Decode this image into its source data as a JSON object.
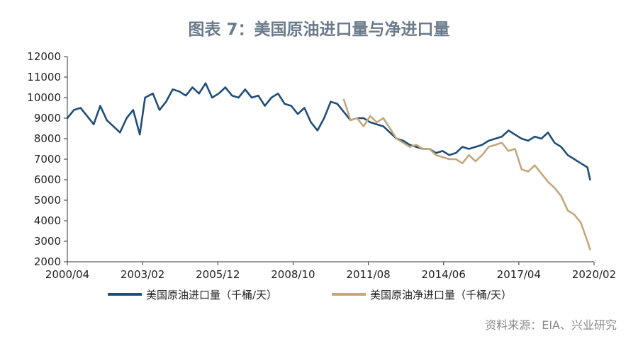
{
  "title": "图表 7：美国原油进口量与净进口量",
  "source": "资料来源：EIA、兴业研究",
  "colors": {
    "imports": "#1f4e79",
    "net_imports": "#c4a77a",
    "axis": "#333333"
  },
  "chart_data": {
    "type": "line",
    "x_tick_labels": [
      "2000/04",
      "2003/02",
      "2005/12",
      "2008/10",
      "2011/08",
      "2014/06",
      "2017/04",
      "2020/02"
    ],
    "y_tick_labels": [
      "2000",
      "3000",
      "4000",
      "5000",
      "6000",
      "7000",
      "8000",
      "9000",
      "10000",
      "11000",
      "12000"
    ],
    "ylim": [
      2000,
      12000
    ],
    "xlim": [
      2000.25,
      2020.25
    ],
    "grid": false,
    "legend_position": "bottom",
    "series": [
      {
        "name": "美国原油进口量（千桶/天）",
        "color_key": "imports",
        "x": [
          2000.25,
          2000.5,
          2000.75,
          2001.0,
          2001.25,
          2001.5,
          2001.75,
          2002.0,
          2002.25,
          2002.5,
          2002.75,
          2003.0,
          2003.2,
          2003.5,
          2003.75,
          2004.0,
          2004.25,
          2004.5,
          2004.75,
          2005.0,
          2005.25,
          2005.5,
          2005.75,
          2006.0,
          2006.25,
          2006.5,
          2006.75,
          2007.0,
          2007.25,
          2007.5,
          2007.75,
          2008.0,
          2008.25,
          2008.5,
          2008.75,
          2009.0,
          2009.25,
          2009.5,
          2009.75,
          2010.0,
          2010.25,
          2010.5,
          2010.75,
          2011.0,
          2011.25,
          2011.5,
          2011.75,
          2012.0,
          2012.25,
          2012.5,
          2012.75,
          2013.0,
          2013.25,
          2013.5,
          2013.75,
          2014.0,
          2014.25,
          2014.5,
          2014.75,
          2015.0,
          2015.25,
          2015.5,
          2015.75,
          2016.0,
          2016.25,
          2016.5,
          2016.75,
          2017.0,
          2017.25,
          2017.5,
          2017.75,
          2018.0,
          2018.25,
          2018.5,
          2018.75,
          2019.0,
          2019.25,
          2019.5,
          2019.75,
          2020.0,
          2020.1
        ],
        "y": [
          9000,
          9400,
          9500,
          9100,
          8700,
          9600,
          8900,
          8600,
          8300,
          9000,
          9400,
          8200,
          10000,
          10200,
          9400,
          9800,
          10400,
          10300,
          10100,
          10500,
          10200,
          10700,
          10000,
          10200,
          10500,
          10100,
          10000,
          10400,
          10000,
          10100,
          9600,
          10000,
          10200,
          9700,
          9600,
          9200,
          9500,
          8800,
          8400,
          9000,
          9800,
          9700,
          9300,
          8900,
          9000,
          9000,
          8800,
          8700,
          8600,
          8300,
          8000,
          7900,
          7700,
          7600,
          7500,
          7500,
          7300,
          7400,
          7200,
          7300,
          7600,
          7500,
          7600,
          7700,
          7900,
          8000,
          8100,
          8400,
          8200,
          8000,
          7900,
          8100,
          8000,
          8300,
          7800,
          7600,
          7200,
          7000,
          6800,
          6600,
          6000
        ]
      },
      {
        "name": "美国原油净进口量（千桶/天）",
        "color_key": "net_imports",
        "x": [
          2010.75,
          2011.0,
          2011.25,
          2011.5,
          2011.75,
          2012.0,
          2012.25,
          2012.5,
          2012.75,
          2013.0,
          2013.25,
          2013.5,
          2013.75,
          2014.0,
          2014.25,
          2014.5,
          2014.75,
          2015.0,
          2015.25,
          2015.5,
          2015.75,
          2016.0,
          2016.25,
          2016.5,
          2016.75,
          2017.0,
          2017.25,
          2017.5,
          2017.75,
          2018.0,
          2018.25,
          2018.5,
          2018.75,
          2019.0,
          2019.25,
          2019.5,
          2019.75,
          2020.0,
          2020.1
        ],
        "y": [
          9900,
          8900,
          9000,
          8600,
          9100,
          8800,
          9000,
          8500,
          8000,
          7800,
          7600,
          7700,
          7500,
          7500,
          7200,
          7100,
          7000,
          7000,
          6800,
          7200,
          6900,
          7200,
          7600,
          7700,
          7800,
          7400,
          7500,
          6500,
          6400,
          6700,
          6300,
          5900,
          5600,
          5200,
          4500,
          4300,
          3900,
          3000,
          2600
        ]
      }
    ]
  }
}
